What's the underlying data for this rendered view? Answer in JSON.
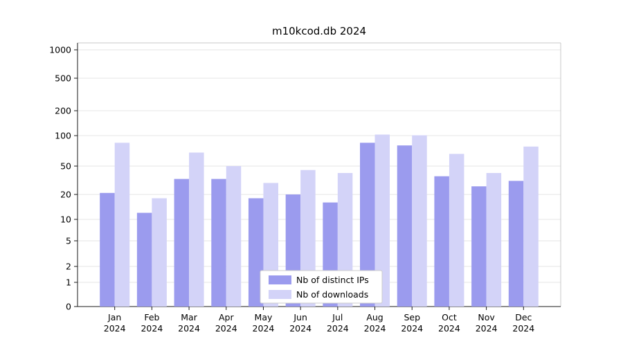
{
  "chart_data": {
    "type": "bar",
    "title": "m10kcod.db 2024",
    "scale": "symlog",
    "grid": true,
    "legend_position": "bottom-center-inside",
    "categories": [
      "Jan 2024",
      "Feb 2024",
      "Mar 2024",
      "Apr 2024",
      "May 2024",
      "Jun 2024",
      "Jul 2024",
      "Aug 2024",
      "Sep 2024",
      "Oct 2024",
      "Nov 2024",
      "Dec 2024"
    ],
    "y_ticks": [
      0,
      1,
      2,
      5,
      10,
      20,
      50,
      100,
      200,
      500,
      1000
    ],
    "ylim": [
      0,
      1300
    ],
    "series": [
      {
        "name": "Nb of distinct IPs",
        "color": "#9b9bee",
        "values": [
          21,
          12,
          33,
          33,
          18,
          20,
          16,
          85,
          80,
          36,
          26,
          31
        ]
      },
      {
        "name": "Nb of downloads",
        "color": "#d3d3f8",
        "values": [
          85,
          18,
          68,
          50,
          29,
          44,
          40,
          103,
          101,
          66,
          40,
          78
        ]
      }
    ],
    "colors": {
      "grid": "#e6e6e6",
      "axis_dark": "#1a1a1a",
      "axis_light": "#c8c8c8",
      "legend_border": "#cccccc"
    }
  }
}
